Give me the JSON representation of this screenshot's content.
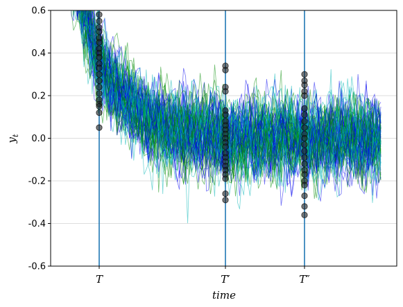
{
  "chart_data": {
    "type": "line",
    "title": "",
    "xlabel": "time",
    "ylabel": "y_t",
    "ylabel_display": "y",
    "ylabel_sub": "t",
    "ylim": [
      -0.6,
      0.6
    ],
    "yticks": [
      "0.6",
      "0.4",
      "0.2",
      "0.0",
      "-0.2",
      "-0.4",
      "-0.6"
    ],
    "ytick_values": [
      0.6,
      0.4,
      0.2,
      0.0,
      -0.2,
      -0.4,
      -0.6
    ],
    "grid": "horizontal",
    "legend": "none",
    "series_count": 80,
    "series_colors": [
      "#0000ee",
      "#008b00",
      "#00b5b5"
    ],
    "mean_curve": {
      "start_value": 0.9,
      "asymptote": 0.0,
      "noise": 0.17
    },
    "vertical_lines": [
      {
        "label": "T",
        "prime": "",
        "color": "#1f77b4",
        "values": [
          0.58,
          0.55,
          0.52,
          0.5,
          0.47,
          0.45,
          0.42,
          0.4,
          0.38,
          0.35,
          0.33,
          0.3,
          0.27,
          0.24,
          0.21,
          0.18,
          0.16,
          0.15,
          0.12,
          0.05
        ]
      },
      {
        "label": "T",
        "prime": "′",
        "color": "#1f77b4",
        "values": [
          0.34,
          0.32,
          0.24,
          0.22,
          0.13,
          0.11,
          0.08,
          0.06,
          0.04,
          0.02,
          0.0,
          -0.02,
          -0.04,
          -0.07,
          -0.09,
          -0.11,
          -0.13,
          -0.15,
          -0.17,
          -0.19,
          -0.26,
          -0.29
        ]
      },
      {
        "label": "T",
        "prime": "″",
        "color": "#1f77b4",
        "values": [
          0.3,
          0.27,
          0.25,
          0.22,
          0.2,
          0.14,
          0.11,
          0.08,
          0.05,
          0.02,
          0.0,
          -0.03,
          -0.06,
          -0.09,
          -0.12,
          -0.15,
          -0.17,
          -0.2,
          -0.22,
          -0.27,
          -0.32,
          -0.36
        ]
      }
    ]
  }
}
